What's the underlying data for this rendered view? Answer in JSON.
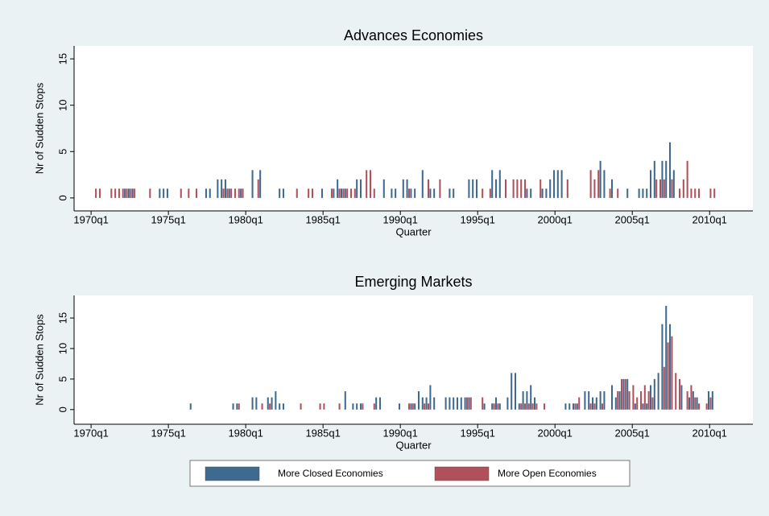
{
  "chart_data": [
    {
      "type": "bar",
      "title": "Advances Economies",
      "xlabel": "Quarter",
      "ylabel": "Nr of Sudden Stops",
      "xlim": [
        1968.9,
        2012.8
      ],
      "ylim": [
        -1.4,
        16.4
      ],
      "xticks": [
        {
          "value": 1970,
          "label": "1970q1"
        },
        {
          "value": 1975,
          "label": "1975q1"
        },
        {
          "value": 1980,
          "label": "1980q1"
        },
        {
          "value": 1985,
          "label": "1985q1"
        },
        {
          "value": 1990,
          "label": "1990q1"
        },
        {
          "value": 1995,
          "label": "1995q1"
        },
        {
          "value": 2000,
          "label": "2000q1"
        },
        {
          "value": 2005,
          "label": "2005q1"
        },
        {
          "value": 2010,
          "label": "2010q1"
        }
      ],
      "yticks": [
        0,
        5,
        10,
        15
      ],
      "series": [
        {
          "name": "More Closed Economies",
          "color": "#3d6a8e",
          "x": [
            1972.25,
            1972.5,
            1972.75,
            1974.5,
            1974.75,
            1975.0,
            1977.5,
            1977.75,
            1978.25,
            1978.5,
            1978.75,
            1979.0,
            1979.75,
            1980.5,
            1981.0,
            1982.25,
            1982.5,
            1985.0,
            1985.75,
            1986.0,
            1986.25,
            1986.5,
            1987.25,
            1987.5,
            1989.0,
            1989.5,
            1989.75,
            1990.25,
            1990.5,
            1990.75,
            1991.0,
            1991.5,
            1992.0,
            1992.25,
            1993.25,
            1993.5,
            1994.5,
            1994.75,
            1995.0,
            1996.0,
            1996.25,
            1996.5,
            1998.25,
            1998.5,
            1999.25,
            1999.5,
            1999.75,
            2000.0,
            2000.25,
            2000.5,
            2003.0,
            2003.25,
            2003.75,
            2004.75,
            2005.5,
            2005.75,
            2006.0,
            2006.25,
            2006.5,
            2007.0,
            2007.25,
            2007.5,
            2007.75
          ],
          "values": [
            1,
            1,
            1,
            1,
            1,
            1,
            1,
            1,
            2,
            2,
            2,
            1,
            1,
            3,
            3,
            1,
            1,
            1,
            1,
            2,
            1,
            1,
            2,
            2,
            2,
            1,
            1,
            2,
            2,
            1,
            1,
            3,
            1,
            1,
            1,
            1,
            2,
            2,
            2,
            3,
            2,
            3,
            1,
            1,
            1,
            1,
            2,
            3,
            3,
            3,
            4,
            3,
            2,
            1,
            1,
            1,
            1,
            3,
            4,
            4,
            4,
            6,
            3
          ]
        },
        {
          "name": "More Open Economies",
          "color": "#b0505a",
          "x": [
            1970.25,
            1970.5,
            1971.25,
            1971.5,
            1971.75,
            1972.0,
            1972.25,
            1972.5,
            1972.75,
            1973.75,
            1975.75,
            1976.25,
            1976.75,
            1978.5,
            1978.75,
            1979.0,
            1979.25,
            1979.5,
            1979.75,
            1980.75,
            1983.25,
            1984.0,
            1984.25,
            1985.5,
            1986.0,
            1986.25,
            1986.5,
            1986.75,
            1987.0,
            1987.75,
            1988.0,
            1988.25,
            1990.5,
            1991.75,
            1992.5,
            1995.25,
            1995.75,
            1996.75,
            1997.25,
            1997.5,
            1997.75,
            1998.0,
            1999.0,
            2000.75,
            2002.25,
            2002.5,
            2002.75,
            2003.5,
            2004.0,
            2006.5,
            2006.75,
            2007.0,
            2007.5,
            2008.0,
            2008.25,
            2008.5,
            2008.75,
            2009.0,
            2009.25,
            2010.0,
            2010.25
          ],
          "values": [
            1,
            1,
            1,
            1,
            1,
            1,
            1,
            1,
            1,
            1,
            1,
            1,
            1,
            1,
            1,
            1,
            1,
            1,
            1,
            2,
            1,
            1,
            1,
            1,
            1,
            1,
            1,
            1,
            1,
            3,
            3,
            1,
            1,
            2,
            2,
            1,
            1,
            2,
            2,
            2,
            2,
            2,
            2,
            2,
            3,
            2,
            3,
            1,
            1,
            2,
            2,
            2,
            2,
            1,
            2,
            4,
            1,
            1,
            1,
            1,
            1
          ]
        }
      ]
    },
    {
      "type": "bar",
      "title": "Emerging Markets",
      "xlabel": "Quarter",
      "ylabel": "Nr of Sudden Stops",
      "xlim": [
        1968.9,
        2012.8
      ],
      "ylim": [
        -2.4,
        18.7
      ],
      "xticks": [
        {
          "value": 1970,
          "label": "1970q1"
        },
        {
          "value": 1975,
          "label": "1975q1"
        },
        {
          "value": 1980,
          "label": "1980q1"
        },
        {
          "value": 1985,
          "label": "1985q1"
        },
        {
          "value": 1990,
          "label": "1990q1"
        },
        {
          "value": 1995,
          "label": "1995q1"
        },
        {
          "value": 2000,
          "label": "2000q1"
        },
        {
          "value": 2005,
          "label": "2005q1"
        },
        {
          "value": 2010,
          "label": "2010q1"
        }
      ],
      "yticks": [
        0,
        5,
        10,
        15
      ],
      "series": [
        {
          "color": "#3d6a8e",
          "x": [
            1976.5,
            1979.25,
            1979.5,
            1980.5,
            1980.75,
            1981.5,
            1981.75,
            1982.0,
            1982.25,
            1982.5,
            1986.5,
            1987.0,
            1987.25,
            1987.5,
            1988.5,
            1988.75,
            1990.0,
            1990.75,
            1991.0,
            1991.25,
            1991.5,
            1991.75,
            1992.0,
            1992.25,
            1993.0,
            1993.25,
            1993.5,
            1993.75,
            1994.0,
            1994.25,
            1994.5,
            1995.5,
            1996.0,
            1996.25,
            1996.5,
            1997.0,
            1997.25,
            1997.5,
            1997.75,
            1998.0,
            1998.25,
            1998.5,
            1998.75,
            2000.75,
            2001.0,
            2001.25,
            2001.5,
            2002.0,
            2002.25,
            2002.5,
            2002.75,
            2003.0,
            2003.25,
            2003.75,
            2004.0,
            2004.25,
            2004.5,
            2004.75,
            2005.25,
            2005.75,
            2006.0,
            2006.25,
            2006.5,
            2006.75,
            2007.0,
            2007.25,
            2007.5,
            2008.25,
            2008.75,
            2009.0,
            2009.25,
            2010.0,
            2010.25
          ],
          "values": [
            1,
            1,
            1,
            2,
            2,
            2,
            2,
            3,
            1,
            1,
            3,
            1,
            1,
            1,
            2,
            2,
            1,
            1,
            1,
            3,
            2,
            2,
            4,
            2,
            2,
            2,
            2,
            2,
            2,
            2,
            2,
            1,
            1,
            2,
            1,
            2,
            6,
            6,
            1,
            3,
            3,
            4,
            2,
            1,
            1,
            1,
            1,
            3,
            3,
            2,
            2,
            3,
            3,
            4,
            2,
            3,
            5,
            5,
            1,
            1,
            1,
            4,
            5,
            6,
            14,
            17,
            14,
            4,
            2,
            3,
            2,
            3,
            3
          ]
        },
        {
          "color": "#b0505a",
          "x": [
            1979.5,
            1981.0,
            1981.5,
            1983.5,
            1984.75,
            1985.0,
            1986.0,
            1987.5,
            1988.25,
            1990.5,
            1990.75,
            1991.5,
            1991.75,
            1994.25,
            1994.5,
            1995.25,
            1996.0,
            1996.25,
            1997.75,
            1998.0,
            1998.25,
            1998.5,
            1998.75,
            1999.25,
            2001.25,
            2001.5,
            2002.25,
            2002.5,
            2003.0,
            2004.0,
            2004.25,
            2004.5,
            2004.75,
            2005.0,
            2005.25,
            2005.5,
            2005.75,
            2006.0,
            2006.25,
            2007.0,
            2007.25,
            2007.5,
            2007.75,
            2008.0,
            2008.5,
            2008.75,
            2009.0,
            2009.25,
            2009.75,
            2010.0
          ],
          "values": [
            1,
            1,
            1,
            1,
            1,
            1,
            1,
            1,
            1,
            1,
            1,
            1,
            1,
            2,
            2,
            2,
            1,
            1,
            1,
            1,
            1,
            1,
            1,
            1,
            1,
            2,
            1,
            1,
            1,
            3,
            5,
            5,
            3,
            4,
            2,
            3,
            4,
            3,
            2,
            7,
            11,
            12,
            6,
            5,
            3,
            4,
            2,
            1,
            1,
            2
          ]
        }
      ]
    }
  ]
}
